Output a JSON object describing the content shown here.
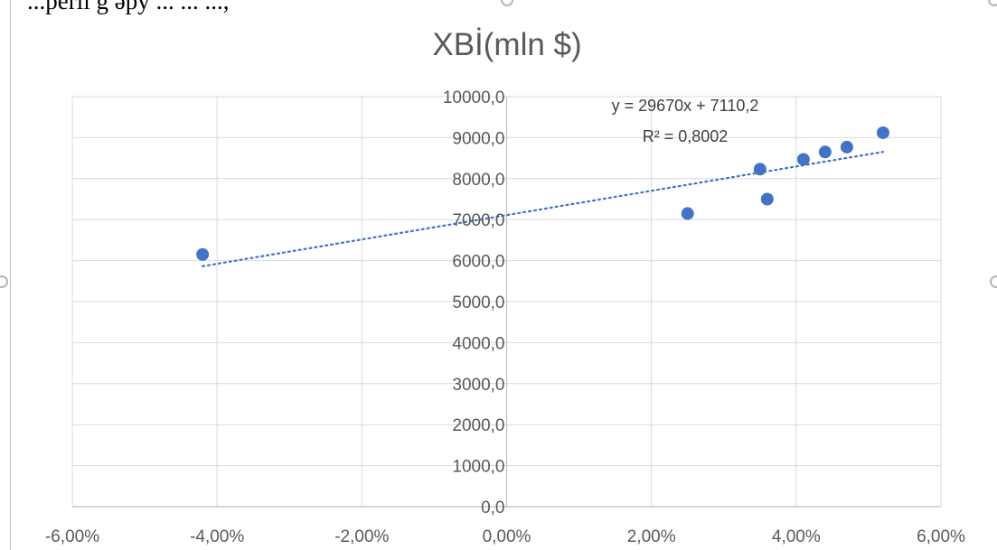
{
  "page": {
    "top_snippet": "...perli g əpy ... ... ..., "
  },
  "chart_data": {
    "type": "scatter",
    "title": "XBİ(mln $)",
    "xlabel": "",
    "ylabel": "",
    "xlim": [
      -0.06,
      0.06
    ],
    "ylim": [
      0,
      10000
    ],
    "x_ticks": [
      -0.06,
      -0.04,
      -0.02,
      0.0,
      0.02,
      0.04,
      0.06
    ],
    "x_tick_labels": [
      "-6,00%",
      "-4,00%",
      "-2,00%",
      "0,00%",
      "2,00%",
      "4,00%",
      "6,00%"
    ],
    "y_ticks": [
      0,
      1000,
      2000,
      3000,
      4000,
      5000,
      6000,
      7000,
      8000,
      9000,
      10000
    ],
    "y_tick_labels": [
      "0,0",
      "1000,0",
      "2000,0",
      "3000,0",
      "4000,0",
      "5000,0",
      "6000,0",
      "7000,0",
      "8000,0",
      "9000,0",
      "10000,0"
    ],
    "grid": true,
    "series": [
      {
        "points": [
          [
            -0.042,
            6150
          ],
          [
            0.025,
            7150
          ],
          [
            0.035,
            8230
          ],
          [
            0.036,
            7500
          ],
          [
            0.041,
            8470
          ],
          [
            0.044,
            8650
          ],
          [
            0.047,
            8770
          ],
          [
            0.052,
            9120
          ]
        ],
        "color": "#4472c4"
      }
    ],
    "trendline": {
      "type": "linear",
      "slope": 29670,
      "intercept": 7110.2,
      "x_range": [
        -0.042,
        0.052
      ],
      "equation": "y = 29670x + 7110,2",
      "r_squared": "R² = 0,8002",
      "color": "#4472c4"
    }
  }
}
